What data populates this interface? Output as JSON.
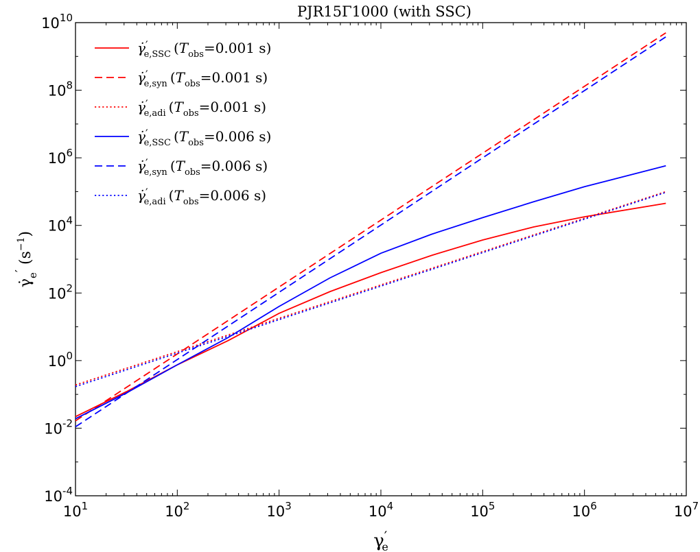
{
  "chart_data": {
    "type": "line",
    "title": "PJR15Γ1000 (with SSC)",
    "xlabel": "γ′e",
    "ylabel": "γ̇′e (s⁻¹)",
    "xscale": "log",
    "yscale": "log",
    "xlim": [
      10,
      10000000
    ],
    "ylim": [
      0.0001,
      10000000000
    ],
    "grid": false,
    "legend_position": "top-left",
    "x_ticks": [
      {
        "value": 10,
        "mantissa": "10",
        "exp": "1"
      },
      {
        "value": 100,
        "mantissa": "10",
        "exp": "2"
      },
      {
        "value": 1000,
        "mantissa": "10",
        "exp": "3"
      },
      {
        "value": 10000,
        "mantissa": "10",
        "exp": "4"
      },
      {
        "value": 100000,
        "mantissa": "10",
        "exp": "5"
      },
      {
        "value": 1000000,
        "mantissa": "10",
        "exp": "6"
      },
      {
        "value": 10000000,
        "mantissa": "10",
        "exp": "7"
      }
    ],
    "y_ticks": [
      {
        "value": 0.0001,
        "mantissa": "10",
        "exp": "-4"
      },
      {
        "value": 0.01,
        "mantissa": "10",
        "exp": "-2"
      },
      {
        "value": 1,
        "mantissa": "10",
        "exp": "0"
      },
      {
        "value": 100,
        "mantissa": "10",
        "exp": "2"
      },
      {
        "value": 10000,
        "mantissa": "10",
        "exp": "4"
      },
      {
        "value": 1000000,
        "mantissa": "10",
        "exp": "6"
      },
      {
        "value": 100000000,
        "mantissa": "10",
        "exp": "8"
      },
      {
        "value": 10000000000,
        "mantissa": "10",
        "exp": "10"
      }
    ],
    "series": [
      {
        "name": "γ̇′e,SSC (Tobs=0.001 s)",
        "sub": "e,SSC",
        "tobs": "0.001",
        "color": "#ff0000",
        "dash": "solid",
        "x": [
          10,
          31.6,
          100,
          316,
          1000,
          3162,
          10000,
          31623,
          100000,
          316228,
          1000000,
          6300000
        ],
        "y": [
          0.022,
          0.12,
          0.75,
          3.9,
          25,
          110,
          400,
          1300,
          3700,
          9000,
          18000,
          45000
        ]
      },
      {
        "name": "γ̇′e,syn (Tobs=0.001 s)",
        "sub": "e,syn",
        "tobs": "0.001",
        "color": "#ff0000",
        "dash": "dashed",
        "x": [
          10,
          6300000
        ],
        "y": [
          0.0165,
          5000000000
        ]
      },
      {
        "name": "γ̇′e,adi (Tobs=0.001 s)",
        "sub": "e,adi",
        "tobs": "0.001",
        "color": "#ff0000",
        "dash": "dotted",
        "x": [
          10,
          6300000
        ],
        "y": [
          0.19,
          100000
        ]
      },
      {
        "name": "γ̇′e,SSC (Tobs=0.006 s)",
        "sub": "e,SSC",
        "tobs": "0.006",
        "color": "#0000ff",
        "dash": "solid",
        "x": [
          10,
          31.6,
          100,
          316,
          1000,
          3162,
          10000,
          31623,
          100000,
          316228,
          1000000,
          6300000
        ],
        "y": [
          0.019,
          0.11,
          0.75,
          4.8,
          40,
          280,
          1500,
          5500,
          17000,
          50000,
          140000,
          580000
        ]
      },
      {
        "name": "γ̇′e,syn (Tobs=0.006 s)",
        "sub": "e,syn",
        "tobs": "0.006",
        "color": "#0000ff",
        "dash": "dashed",
        "x": [
          10,
          6300000
        ],
        "y": [
          0.011,
          3800000000
        ]
      },
      {
        "name": "γ̇′e,adi (Tobs=0.006 s)",
        "sub": "e,adi",
        "tobs": "0.006",
        "color": "#0000ff",
        "dash": "dotted",
        "x": [
          10,
          6300000
        ],
        "y": [
          0.17,
          95000
        ]
      }
    ]
  }
}
